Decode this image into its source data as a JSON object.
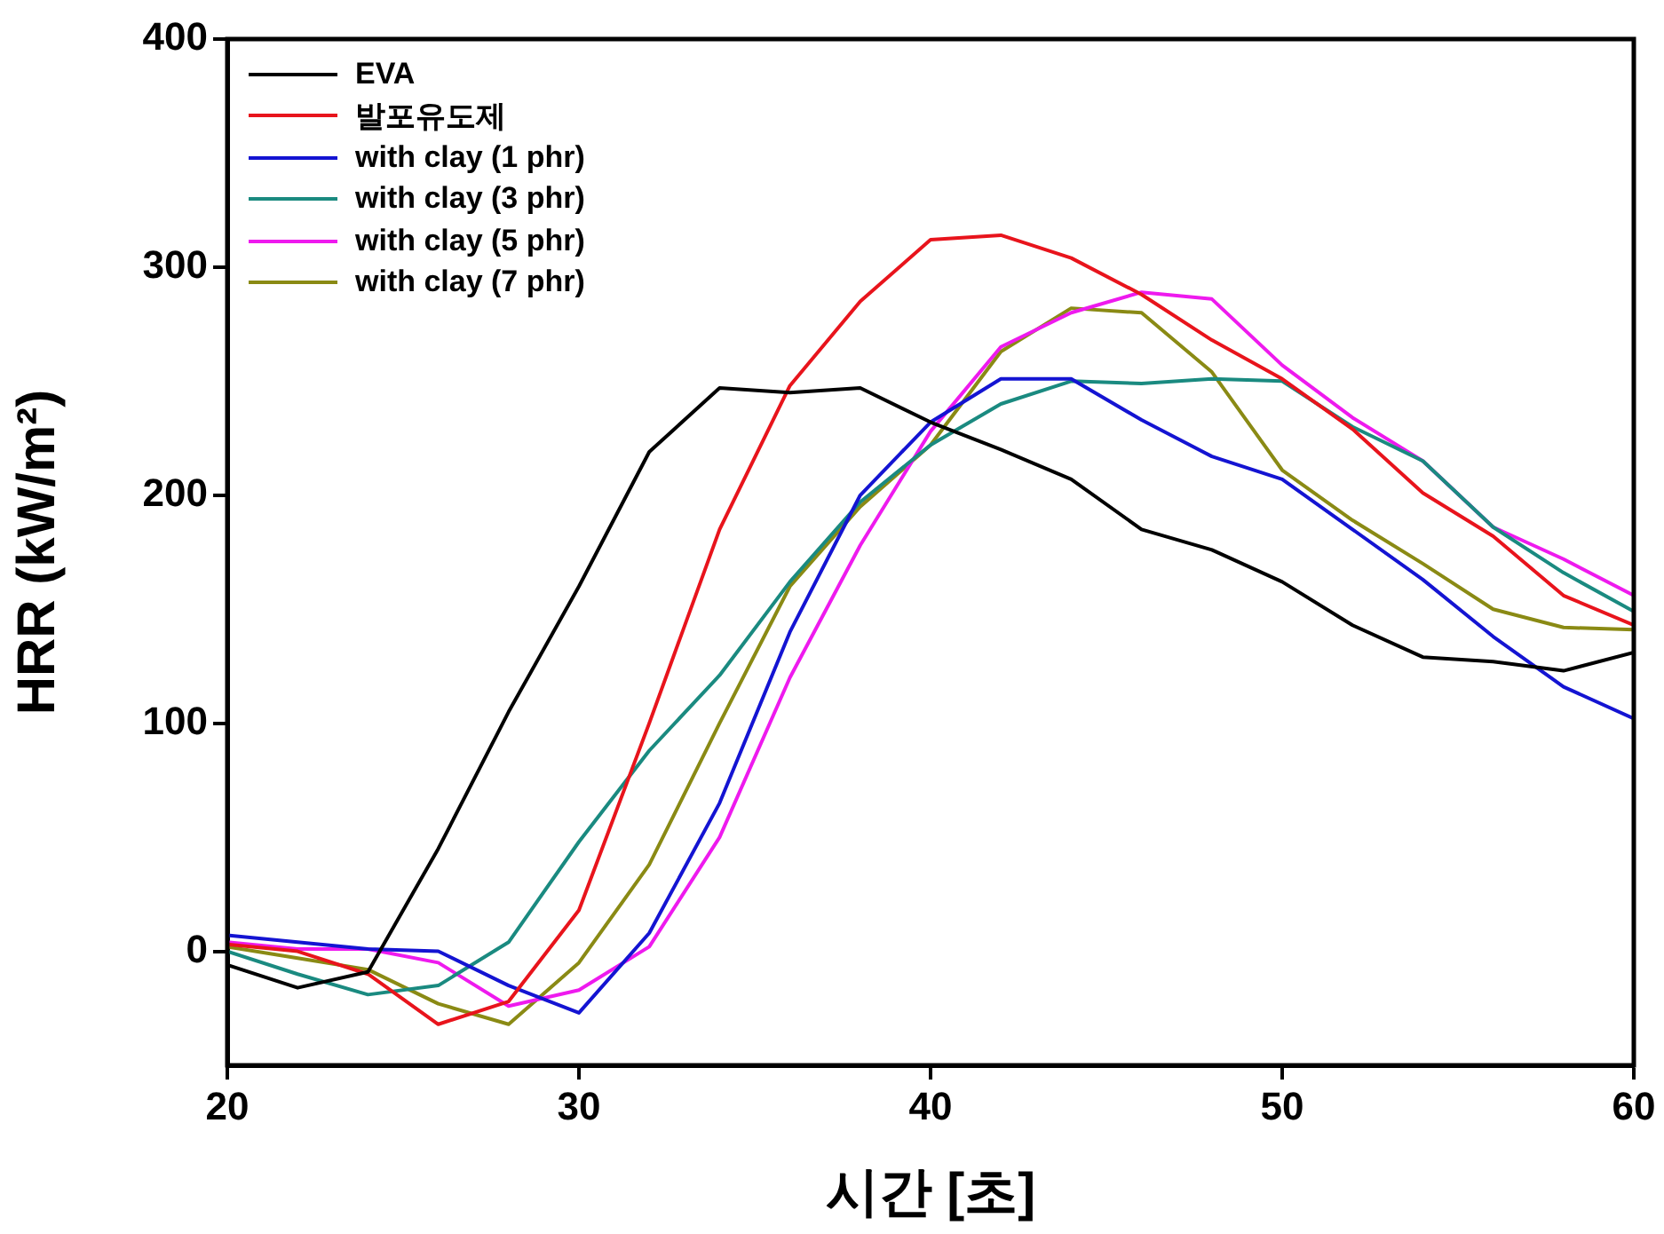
{
  "chart_data": {
    "type": "line",
    "xlabel": "시간 [초]",
    "ylabel": "HRR (kW/m²)",
    "x": [
      20,
      22,
      24,
      26,
      28,
      30,
      32,
      34,
      36,
      38,
      40,
      42,
      44,
      46,
      48,
      50,
      52,
      54,
      56,
      58,
      60
    ],
    "xlim": [
      20,
      60
    ],
    "xticks": [
      20,
      30,
      40,
      50,
      60
    ],
    "ylim": [
      -50,
      400
    ],
    "yticks": [
      0,
      100,
      200,
      300,
      400
    ],
    "grid": false,
    "legend": "top left",
    "marker": "none",
    "line_style": "solid",
    "series": [
      {
        "name": "EVA",
        "color": "#000000",
        "values": [
          -6,
          -16,
          -9,
          45,
          105,
          160,
          219,
          247,
          245,
          247,
          232,
          220,
          207,
          185,
          176,
          162,
          143,
          129,
          127,
          123,
          131
        ]
      },
      {
        "name": "발포유도제",
        "color": "#e8141c",
        "values": [
          3,
          0,
          -10,
          -32,
          -22,
          18,
          100,
          185,
          248,
          285,
          312,
          314,
          304,
          288,
          268,
          251,
          229,
          201,
          182,
          156,
          143
        ]
      },
      {
        "name": "with clay (1 phr)",
        "color": "#1414d2",
        "values": [
          7,
          4,
          1,
          0,
          -15,
          -27,
          8,
          65,
          140,
          200,
          232,
          251,
          251,
          233,
          217,
          207,
          185,
          163,
          138,
          116,
          102
        ]
      },
      {
        "name": "with clay (3 phr)",
        "color": "#1a8a80",
        "values": [
          0,
          -10,
          -19,
          -15,
          4,
          48,
          88,
          121,
          162,
          197,
          222,
          240,
          250,
          249,
          251,
          250,
          230,
          215,
          186,
          166,
          149
        ]
      },
      {
        "name": "with clay (5 phr)",
        "color": "#ee1aee",
        "values": [
          4,
          1,
          1,
          -5,
          -24,
          -17,
          2,
          50,
          120,
          178,
          228,
          265,
          280,
          289,
          286,
          257,
          234,
          215,
          186,
          172,
          156
        ]
      },
      {
        "name": "with clay (7 phr)",
        "color": "#8a8a14",
        "values": [
          2,
          -3,
          -8,
          -23,
          -32,
          -5,
          38,
          100,
          160,
          195,
          222,
          263,
          282,
          280,
          254,
          211,
          189,
          170,
          150,
          142,
          141
        ]
      }
    ]
  }
}
